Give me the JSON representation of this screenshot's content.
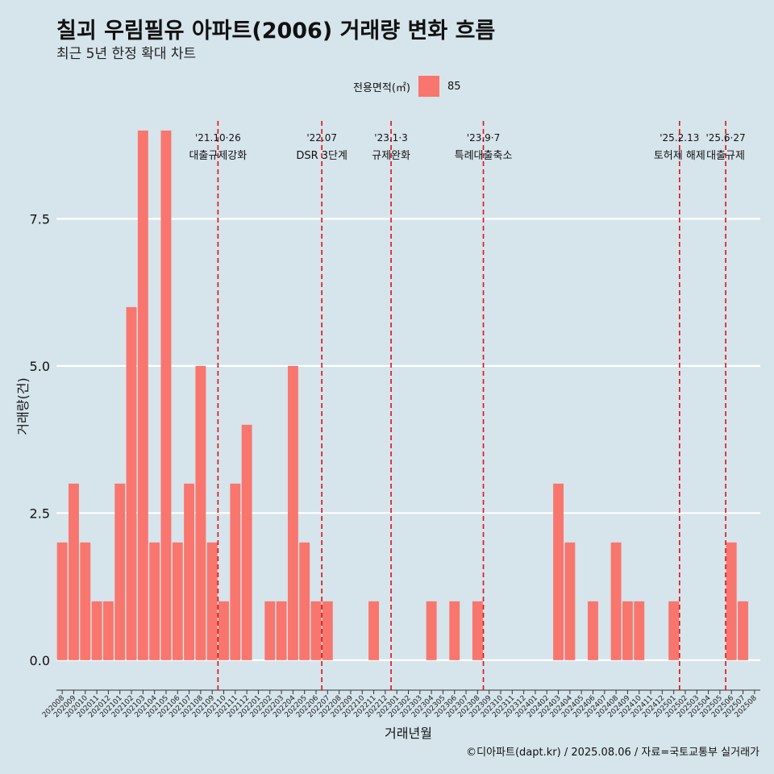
{
  "title": "칠괴 우림필유 아파트(2006) 거래량 변화 흐름",
  "subtitle": "최근 5년 한정 확대 차트",
  "legend": {
    "title": "전용면적(㎡)",
    "item": "85",
    "color": "#f8766d"
  },
  "caption": "©디아파트(dapt.kr) / 2025.08.06 / 자료=국토교통부 실거래가",
  "chart_data": {
    "type": "bar",
    "xlabel": "거래년월",
    "ylabel": "거래량(건)",
    "ylim": [
      -0.4,
      9.3
    ],
    "yticks": [
      0.0,
      2.5,
      5.0,
      7.5
    ],
    "ytick_labels": [
      "0.0",
      "2.5",
      "5.0",
      "7.5"
    ],
    "grid": true,
    "series": [
      {
        "name": "85",
        "color": "#f8766d"
      }
    ],
    "categories": [
      "202008",
      "202009",
      "202010",
      "202011",
      "202012",
      "202101",
      "202102",
      "202103",
      "202104",
      "202105",
      "202106",
      "202107",
      "202108",
      "202109",
      "202110",
      "202111",
      "202112",
      "202201",
      "202202",
      "202203",
      "202204",
      "202205",
      "202206",
      "202207",
      "202208",
      "202209",
      "202210",
      "202211",
      "202212",
      "202301",
      "202302",
      "202303",
      "202304",
      "202305",
      "202306",
      "202307",
      "202308",
      "202309",
      "202310",
      "202311",
      "202312",
      "202401",
      "202402",
      "202403",
      "202404",
      "202405",
      "202406",
      "202407",
      "202408",
      "202409",
      "202410",
      "202411",
      "202412",
      "202501",
      "202502",
      "202503",
      "202504",
      "202505",
      "202506",
      "202507",
      "202508"
    ],
    "values": [
      2,
      3,
      2,
      1,
      1,
      3,
      6,
      9,
      2,
      9,
      2,
      3,
      5,
      2,
      1,
      3,
      4,
      0,
      1,
      1,
      5,
      2,
      1,
      1,
      0,
      0,
      0,
      1,
      0,
      0,
      0,
      0,
      1,
      0,
      1,
      0,
      1,
      0,
      0,
      0,
      0,
      0,
      0,
      3,
      2,
      0,
      1,
      0,
      2,
      1,
      1,
      0,
      0,
      1,
      0,
      0,
      0,
      0,
      2,
      1,
      0
    ],
    "annotations": [
      {
        "x": 14.0,
        "line1": "'21.10·26",
        "line2": "대출규제강화"
      },
      {
        "x": 23.0,
        "line1": "'22.07",
        "line2": "DSR 3단계"
      },
      {
        "x": 29.0,
        "line1": "'23.1·3",
        "line2": "규제완화"
      },
      {
        "x": 37.0,
        "line1": "'23.9·7",
        "line2": "특례대출축소"
      },
      {
        "x": 54.0,
        "line1": "'25.2.13",
        "line2": "토허제 해제"
      },
      {
        "x": 58.0,
        "line1": "'25.6·27",
        "line2": "대출규제"
      }
    ]
  }
}
